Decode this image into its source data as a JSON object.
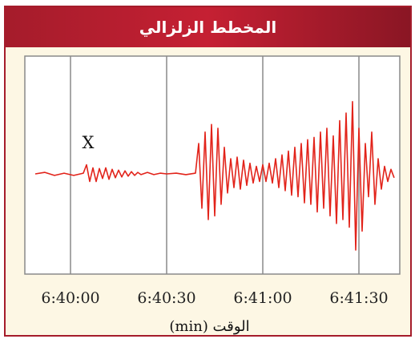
{
  "window": {
    "title": "المخطط الزلزالي"
  },
  "chart_data": {
    "type": "line",
    "title": "المخطط الزلزالي",
    "xlabel": "الوقت (min)",
    "ylabel": "",
    "grid": true,
    "x_ticks": [
      "6:40:00",
      "6:40:30",
      "6:41:00",
      "6:41:30"
    ],
    "annotations": [
      {
        "text": "X",
        "x": "6:40:05"
      }
    ],
    "colors": {
      "accent": "#a51c2b",
      "panel_bg": "#fdf7e4",
      "line": "#e2231a",
      "grid": "#8a8a8a"
    },
    "series": [
      {
        "x": [
          "6:39:49",
          "6:39:52",
          "6:39:55",
          "6:39:58",
          "6:40:01",
          "6:40:04",
          "6:40:05",
          "6:40:06",
          "6:40:07",
          "6:40:08",
          "6:40:09",
          "6:40:10",
          "6:40:11",
          "6:40:12",
          "6:40:13",
          "6:40:14",
          "6:40:15",
          "6:40:16",
          "6:40:17",
          "6:40:18",
          "6:40:19",
          "6:40:20",
          "6:40:21",
          "6:40:22",
          "6:40:24",
          "6:40:26",
          "6:40:28",
          "6:40:30",
          "6:40:33",
          "6:40:36",
          "6:40:39",
          "6:40:40",
          "6:40:41",
          "6:40:42",
          "6:40:43",
          "6:40:44",
          "6:40:45",
          "6:40:46",
          "6:40:47",
          "6:40:48",
          "6:40:49",
          "6:40:50",
          "6:40:51",
          "6:40:52",
          "6:40:53",
          "6:40:54",
          "6:40:55",
          "6:40:56",
          "6:40:57",
          "6:40:58",
          "6:40:59",
          "6:41:00",
          "6:41:01",
          "6:41:02",
          "6:41:03",
          "6:41:04",
          "6:41:05",
          "6:41:06",
          "6:41:07",
          "6:41:08",
          "6:41:09",
          "6:41:10",
          "6:41:11",
          "6:41:12",
          "6:41:13",
          "6:41:14",
          "6:41:15",
          "6:41:16",
          "6:41:17",
          "6:41:18",
          "6:41:19",
          "6:41:20",
          "6:41:21",
          "6:41:22",
          "6:41:23",
          "6:41:24",
          "6:41:25",
          "6:41:26",
          "6:41:27",
          "6:41:28",
          "6:41:29",
          "6:41:30",
          "6:41:31",
          "6:41:32",
          "6:41:33",
          "6:41:34",
          "6:41:35",
          "6:41:36",
          "6:41:37",
          "6:41:38",
          "6:41:39",
          "6:41:40",
          "6:41:41"
        ],
        "y": [
          0,
          0.02,
          -0.02,
          0.01,
          -0.02,
          0.01,
          0.12,
          -0.1,
          0.08,
          -0.1,
          0.07,
          -0.06,
          0.08,
          -0.07,
          0.06,
          -0.05,
          0.05,
          -0.04,
          0.04,
          -0.03,
          0.03,
          -0.02,
          0.02,
          -0.01,
          0.02,
          -0.01,
          0.01,
          0,
          0.01,
          -0.01,
          0.01,
          0.4,
          -0.45,
          0.55,
          -0.6,
          0.65,
          -0.55,
          0.6,
          -0.4,
          0.35,
          -0.25,
          0.2,
          -0.18,
          0.22,
          -0.2,
          0.18,
          -0.15,
          0.14,
          -0.12,
          0.1,
          -0.1,
          0.12,
          -0.1,
          0.14,
          -0.12,
          0.2,
          -0.18,
          0.25,
          -0.22,
          0.3,
          -0.28,
          0.35,
          -0.3,
          0.4,
          -0.38,
          0.45,
          -0.4,
          0.48,
          -0.5,
          0.55,
          -0.45,
          0.6,
          -0.55,
          0.5,
          -0.65,
          0.7,
          -0.6,
          0.8,
          -0.7,
          0.95,
          -1.0,
          0.6,
          -0.75,
          0.4,
          -0.3,
          0.55,
          -0.4,
          0.2,
          -0.2,
          0.1,
          -0.1,
          0.06,
          -0.05
        ]
      }
    ]
  }
}
